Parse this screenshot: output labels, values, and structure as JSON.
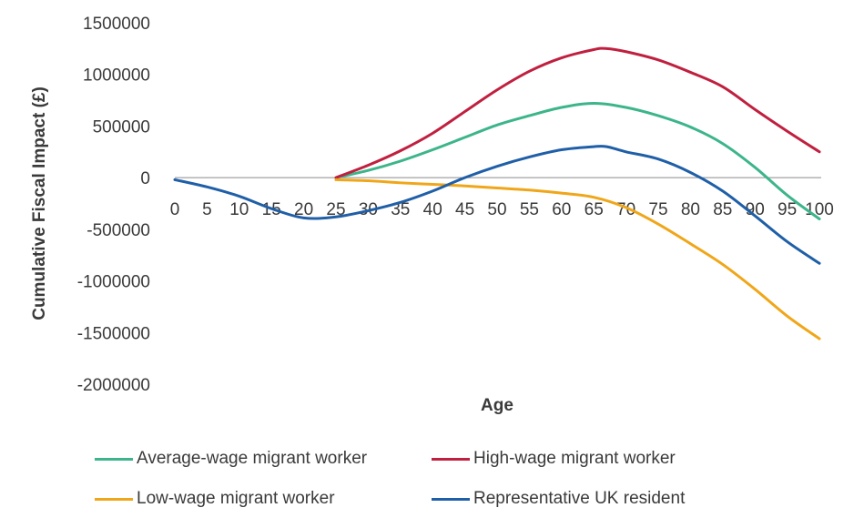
{
  "chart_data": {
    "type": "line",
    "xlabel": "Age",
    "ylabel": "Cumulative Fiscal Impact (£)",
    "xlim": [
      0,
      100
    ],
    "ylim": [
      -2000000,
      1500000
    ],
    "x_ticks": [
      "0",
      "5",
      "10",
      "15",
      "20",
      "25",
      "30",
      "35",
      "40",
      "45",
      "50",
      "55",
      "60",
      "65",
      "70",
      "75",
      "80",
      "85",
      "90",
      "95",
      "100"
    ],
    "y_ticks": [
      "1500000",
      "1000000",
      "500000",
      "0",
      "-500000",
      "-1000000",
      "-1500000",
      "-2000000"
    ],
    "grid": false,
    "legend_position": "bottom",
    "series": [
      {
        "name": "Average-wage migrant worker",
        "color": "#3cb58a",
        "points": [
          [
            25,
            0
          ],
          [
            30,
            70000
          ],
          [
            35,
            160000
          ],
          [
            40,
            270000
          ],
          [
            45,
            390000
          ],
          [
            50,
            510000
          ],
          [
            55,
            600000
          ],
          [
            60,
            680000
          ],
          [
            65,
            720000
          ],
          [
            70,
            680000
          ],
          [
            75,
            600000
          ],
          [
            80,
            490000
          ],
          [
            85,
            330000
          ],
          [
            90,
            100000
          ],
          [
            95,
            -170000
          ],
          [
            100,
            -400000
          ]
        ]
      },
      {
        "name": "High-wage migrant worker",
        "color": "#c0203f",
        "points": [
          [
            25,
            0
          ],
          [
            30,
            120000
          ],
          [
            35,
            260000
          ],
          [
            40,
            430000
          ],
          [
            45,
            640000
          ],
          [
            50,
            850000
          ],
          [
            55,
            1030000
          ],
          [
            60,
            1160000
          ],
          [
            65,
            1240000
          ],
          [
            67,
            1250000
          ],
          [
            70,
            1220000
          ],
          [
            75,
            1140000
          ],
          [
            80,
            1020000
          ],
          [
            85,
            880000
          ],
          [
            90,
            660000
          ],
          [
            95,
            450000
          ],
          [
            100,
            250000
          ]
        ]
      },
      {
        "name": "Low-wage migrant worker",
        "color": "#f0a619",
        "points": [
          [
            25,
            -20000
          ],
          [
            30,
            -30000
          ],
          [
            35,
            -50000
          ],
          [
            40,
            -65000
          ],
          [
            45,
            -80000
          ],
          [
            50,
            -100000
          ],
          [
            55,
            -120000
          ],
          [
            60,
            -150000
          ],
          [
            65,
            -190000
          ],
          [
            70,
            -290000
          ],
          [
            75,
            -450000
          ],
          [
            80,
            -640000
          ],
          [
            85,
            -840000
          ],
          [
            90,
            -1080000
          ],
          [
            95,
            -1340000
          ],
          [
            100,
            -1560000
          ]
        ]
      },
      {
        "name": "Representative UK resident",
        "color": "#1f5fa8",
        "points": [
          [
            0,
            -20000
          ],
          [
            5,
            -90000
          ],
          [
            10,
            -180000
          ],
          [
            15,
            -300000
          ],
          [
            20,
            -390000
          ],
          [
            25,
            -380000
          ],
          [
            30,
            -320000
          ],
          [
            35,
            -240000
          ],
          [
            40,
            -130000
          ],
          [
            45,
            0
          ],
          [
            50,
            110000
          ],
          [
            55,
            200000
          ],
          [
            60,
            270000
          ],
          [
            65,
            300000
          ],
          [
            67,
            300000
          ],
          [
            70,
            250000
          ],
          [
            75,
            180000
          ],
          [
            80,
            50000
          ],
          [
            85,
            -130000
          ],
          [
            90,
            -370000
          ],
          [
            95,
            -620000
          ],
          [
            100,
            -830000
          ]
        ]
      }
    ]
  }
}
